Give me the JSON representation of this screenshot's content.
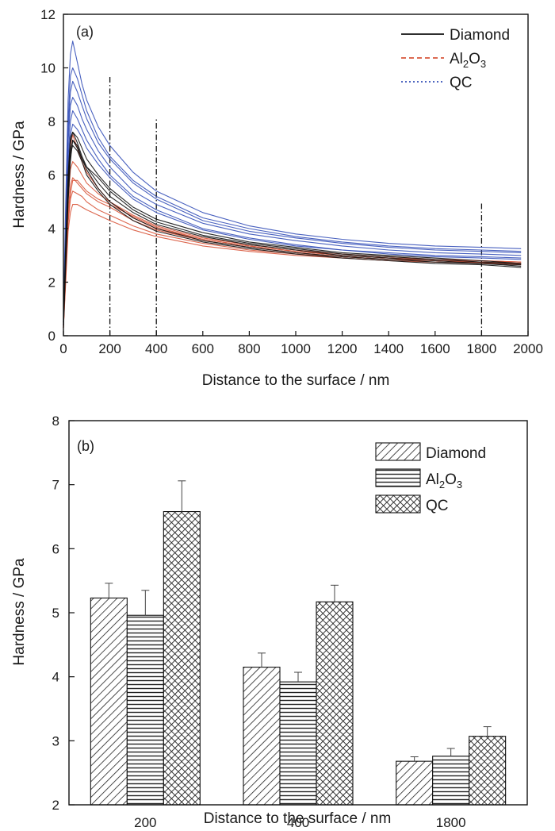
{
  "chart_data": [
    {
      "type": "line",
      "panel_label": "(a)",
      "xlabel": "Distance to the surface / nm",
      "ylabel": "Hardness / GPa",
      "xlim": [
        0,
        2000
      ],
      "ylim": [
        0,
        12
      ],
      "x_ticks": [
        0,
        200,
        400,
        600,
        800,
        1000,
        1200,
        1400,
        1600,
        1800,
        2000
      ],
      "y_ticks": [
        0,
        2,
        4,
        6,
        8,
        10,
        12
      ],
      "legend_position": "top-right",
      "reference_lines_x": [
        200,
        400,
        1800
      ],
      "series": [
        {
          "name": "Diamond",
          "legend_label": {
            "base": "Diamond",
            "parts": []
          },
          "color": "#111111",
          "line_style": "solid",
          "curves": [
            {
              "x": [
                0,
                10,
                20,
                30,
                40,
                60,
                80,
                100,
                150,
                200,
                300,
                400,
                600,
                800,
                1000,
                1200,
                1400,
                1600,
                1800,
                1970
              ],
              "y": [
                0.4,
                3.2,
                5.8,
                7.2,
                7.6,
                7.2,
                6.7,
                6.3,
                5.7,
                5.2,
                4.6,
                4.15,
                3.7,
                3.4,
                3.2,
                3.0,
                2.9,
                2.8,
                2.7,
                2.65
              ]
            },
            {
              "x": [
                0,
                10,
                20,
                30,
                40,
                60,
                80,
                100,
                150,
                200,
                300,
                400,
                600,
                800,
                1000,
                1200,
                1400,
                1600,
                1800,
                1970
              ],
              "y": [
                0.3,
                2.6,
                5.0,
                6.5,
                7.3,
                7.1,
                6.6,
                6.2,
                5.5,
                5.0,
                4.4,
                4.0,
                3.55,
                3.3,
                3.1,
                2.95,
                2.85,
                2.75,
                2.7,
                2.6
              ]
            },
            {
              "x": [
                0,
                10,
                20,
                30,
                40,
                60,
                80,
                100,
                150,
                200,
                300,
                400,
                600,
                800,
                1000,
                1200,
                1400,
                1600,
                1800,
                1970
              ],
              "y": [
                0.5,
                3.5,
                6.0,
                7.4,
                7.6,
                7.4,
                7.0,
                6.6,
                6.0,
                5.5,
                4.8,
                4.35,
                3.85,
                3.5,
                3.3,
                3.1,
                3.0,
                2.9,
                2.8,
                2.7
              ]
            },
            {
              "x": [
                0,
                10,
                20,
                30,
                40,
                60,
                80,
                100,
                150,
                200,
                300,
                400,
                600,
                800,
                1000,
                1200,
                1400,
                1600,
                1800,
                1970
              ],
              "y": [
                0.3,
                2.8,
                5.3,
                6.8,
                7.1,
                6.9,
                6.5,
                6.0,
                5.4,
                4.9,
                4.3,
                3.9,
                3.5,
                3.25,
                3.05,
                2.9,
                2.8,
                2.7,
                2.65,
                2.55
              ]
            },
            {
              "x": [
                0,
                10,
                20,
                30,
                40,
                60,
                80,
                100,
                150,
                200,
                300,
                400,
                600,
                800,
                1000,
                1200,
                1400,
                1600,
                1800,
                1970
              ],
              "y": [
                0.4,
                3.0,
                5.5,
                6.9,
                7.3,
                7.0,
                6.6,
                6.3,
                5.9,
                5.4,
                4.7,
                4.25,
                3.75,
                3.45,
                3.25,
                3.05,
                2.95,
                2.85,
                2.75,
                2.7
              ]
            }
          ]
        },
        {
          "name": "Al2O3",
          "legend_label": {
            "base": "Al",
            "parts": [
              {
                "sub": "2"
              },
              {
                "text": "O"
              },
              {
                "sub": "3"
              }
            ]
          },
          "color": "#d8553a",
          "line_style": "dashed",
          "curves": [
            {
              "x": [
                0,
                10,
                20,
                30,
                40,
                60,
                80,
                100,
                150,
                200,
                300,
                400,
                600,
                800,
                1000,
                1200,
                1400,
                1600,
                1800,
                1970
              ],
              "y": [
                0.3,
                2.5,
                4.6,
                5.6,
                5.9,
                5.7,
                5.5,
                5.3,
                5.0,
                4.8,
                4.3,
                3.95,
                3.55,
                3.3,
                3.1,
                2.95,
                2.85,
                2.8,
                2.75,
                2.7
              ]
            },
            {
              "x": [
                0,
                10,
                20,
                30,
                40,
                60,
                80,
                100,
                150,
                200,
                300,
                400,
                600,
                800,
                1000,
                1200,
                1400,
                1600,
                1800,
                1970
              ],
              "y": [
                0.3,
                2.0,
                3.9,
                4.6,
                4.9,
                4.9,
                4.8,
                4.7,
                4.5,
                4.3,
                3.95,
                3.7,
                3.35,
                3.15,
                3.0,
                2.9,
                2.8,
                2.75,
                2.7,
                2.65
              ]
            },
            {
              "x": [
                0,
                10,
                20,
                30,
                40,
                60,
                80,
                100,
                150,
                200,
                300,
                400,
                600,
                800,
                1000,
                1200,
                1400,
                1600,
                1800,
                1970
              ],
              "y": [
                0.4,
                3.0,
                5.6,
                7.1,
                7.5,
                7.0,
                6.5,
                6.1,
                5.5,
                5.0,
                4.4,
                4.0,
                3.6,
                3.35,
                3.15,
                3.0,
                2.9,
                2.8,
                2.75,
                2.7
              ]
            },
            {
              "x": [
                0,
                10,
                20,
                30,
                40,
                60,
                80,
                100,
                150,
                200,
                300,
                400,
                600,
                800,
                1000,
                1200,
                1400,
                1600,
                1800,
                1970
              ],
              "y": [
                0.3,
                2.3,
                4.2,
                5.1,
                5.4,
                5.3,
                5.2,
                5.0,
                4.7,
                4.5,
                4.1,
                3.8,
                3.45,
                3.2,
                3.05,
                2.95,
                2.85,
                2.8,
                2.72,
                2.68
              ]
            },
            {
              "x": [
                0,
                10,
                20,
                30,
                40,
                60,
                80,
                100,
                150,
                200,
                300,
                400,
                600,
                800,
                1000,
                1200,
                1400,
                1600,
                1800,
                1970
              ],
              "y": [
                0.4,
                2.8,
                5.0,
                6.2,
                6.5,
                6.3,
                6.0,
                5.7,
                5.3,
                5.0,
                4.5,
                4.1,
                3.65,
                3.4,
                3.2,
                3.05,
                2.95,
                2.85,
                2.8,
                2.75
              ]
            },
            {
              "x": [
                0,
                10,
                20,
                30,
                40,
                60,
                80,
                100,
                150,
                200,
                300,
                400,
                600,
                800,
                1000,
                1200,
                1400,
                1600,
                1800,
                1970
              ],
              "y": [
                0.3,
                2.2,
                4.3,
                5.3,
                5.8,
                5.8,
                5.6,
                5.4,
                5.1,
                4.9,
                4.45,
                4.05,
                3.6,
                3.35,
                3.15,
                3.0,
                2.9,
                2.85,
                2.8,
                2.75
              ]
            }
          ]
        },
        {
          "name": "QC",
          "legend_label": {
            "base": "QC",
            "parts": []
          },
          "color": "#3550b8",
          "line_style": "dotted",
          "curves": [
            {
              "x": [
                0,
                10,
                20,
                30,
                40,
                60,
                80,
                100,
                150,
                200,
                300,
                400,
                600,
                800,
                1000,
                1200,
                1400,
                1600,
                1800,
                1970
              ],
              "y": [
                0.6,
                5.0,
                8.8,
                10.5,
                11.0,
                10.2,
                9.4,
                8.8,
                7.8,
                7.1,
                6.1,
                5.4,
                4.6,
                4.1,
                3.8,
                3.6,
                3.45,
                3.35,
                3.3,
                3.25
              ]
            },
            {
              "x": [
                0,
                10,
                20,
                30,
                40,
                60,
                80,
                100,
                150,
                200,
                300,
                400,
                600,
                800,
                1000,
                1200,
                1400,
                1600,
                1800,
                1970
              ],
              "y": [
                0.5,
                4.5,
                8.0,
                9.7,
                10.0,
                9.6,
                9.0,
                8.4,
                7.4,
                6.7,
                5.8,
                5.2,
                4.4,
                4.0,
                3.7,
                3.5,
                3.35,
                3.25,
                3.2,
                3.15
              ]
            },
            {
              "x": [
                0,
                10,
                20,
                30,
                40,
                60,
                80,
                100,
                150,
                200,
                300,
                400,
                600,
                800,
                1000,
                1200,
                1400,
                1600,
                1800,
                1970
              ],
              "y": [
                0.5,
                4.0,
                7.2,
                8.6,
                8.9,
                8.6,
                8.1,
                7.7,
                6.9,
                6.3,
                5.4,
                4.9,
                4.2,
                3.8,
                3.55,
                3.35,
                3.2,
                3.1,
                3.05,
                3.0
              ]
            },
            {
              "x": [
                0,
                10,
                20,
                30,
                40,
                60,
                80,
                100,
                150,
                200,
                300,
                400,
                600,
                800,
                1000,
                1200,
                1400,
                1600,
                1800,
                1970
              ],
              "y": [
                0.4,
                3.6,
                6.6,
                8.0,
                8.4,
                8.1,
                7.7,
                7.3,
                6.6,
                6.0,
                5.2,
                4.7,
                4.0,
                3.65,
                3.4,
                3.2,
                3.1,
                3.0,
                2.95,
                2.9
              ]
            },
            {
              "x": [
                0,
                10,
                20,
                30,
                40,
                60,
                80,
                100,
                150,
                200,
                300,
                400,
                600,
                800,
                1000,
                1200,
                1400,
                1600,
                1800,
                1970
              ],
              "y": [
                0.5,
                4.2,
                7.6,
                9.1,
                9.5,
                9.1,
                8.6,
                8.1,
                7.2,
                6.6,
                5.7,
                5.1,
                4.3,
                3.9,
                3.65,
                3.45,
                3.3,
                3.2,
                3.15,
                3.1
              ]
            },
            {
              "x": [
                0,
                10,
                20,
                30,
                40,
                60,
                80,
                100,
                150,
                200,
                300,
                400,
                600,
                800,
                1000,
                1200,
                1400,
                1600,
                1800,
                1970
              ],
              "y": [
                0.4,
                3.4,
                6.2,
                7.5,
                7.9,
                7.7,
                7.4,
                7.0,
                6.4,
                5.9,
                5.1,
                4.6,
                3.95,
                3.6,
                3.35,
                3.2,
                3.05,
                2.95,
                2.9,
                2.85
              ]
            }
          ]
        }
      ]
    },
    {
      "type": "bar",
      "panel_label": "(b)",
      "xlabel": "Distance to the surface / nm",
      "ylabel": "Hardness / GPa",
      "categories": [
        "200",
        "400",
        "1800"
      ],
      "ylim": [
        2,
        8
      ],
      "y_ticks": [
        2,
        3,
        4,
        5,
        6,
        7,
        8
      ],
      "legend_position": "top-right",
      "series": [
        {
          "name": "Diamond",
          "legend_label": {
            "base": "Diamond",
            "parts": []
          },
          "pattern": "diagonal-hatch",
          "values": [
            5.23,
            4.15,
            2.68
          ],
          "errors": [
            0.23,
            0.22,
            0.07
          ]
        },
        {
          "name": "Al2O3",
          "legend_label": {
            "base": "Al",
            "parts": [
              {
                "sub": "2"
              },
              {
                "text": "O"
              },
              {
                "sub": "3"
              }
            ]
          },
          "pattern": "horizontal-lines",
          "values": [
            4.96,
            3.92,
            2.76
          ],
          "errors": [
            0.39,
            0.15,
            0.12
          ]
        },
        {
          "name": "QC",
          "legend_label": {
            "base": "QC",
            "parts": []
          },
          "pattern": "crosshatch",
          "values": [
            6.58,
            5.17,
            3.07
          ],
          "errors": [
            0.48,
            0.26,
            0.15
          ]
        }
      ]
    }
  ]
}
